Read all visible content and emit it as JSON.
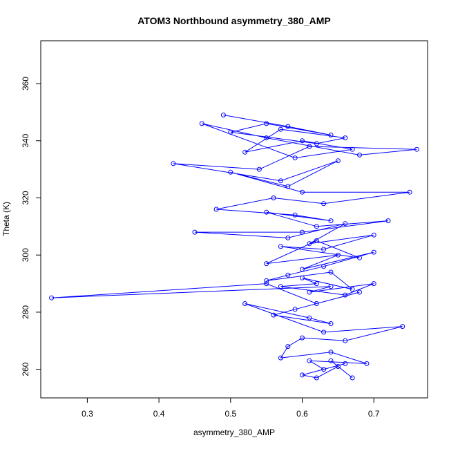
{
  "chart_data": {
    "type": "scatter",
    "title": "ATOM3 Northbound asymmetry_380_AMP",
    "xlabel": "asymmetry_380_AMP",
    "ylabel": "Theta (K)",
    "xlim": [
      0.235,
      0.775
    ],
    "ylim": [
      250,
      375
    ],
    "xticks": [
      "0.3",
      "0.4",
      "0.5",
      "0.6",
      "0.7"
    ],
    "yticks": [
      "260",
      "280",
      "300",
      "320",
      "340",
      "360"
    ],
    "grid": false,
    "colors": {
      "series": "#0000ff",
      "axis": "#000000"
    },
    "marker": "open-circle",
    "connect_points": true,
    "series": [
      {
        "x": [
          0.49,
          0.58,
          0.64,
          0.55,
          0.5,
          0.62,
          0.66,
          0.57,
          0.52,
          0.6,
          0.67,
          0.59,
          0.46,
          0.55,
          0.68,
          0.76,
          0.61,
          0.54,
          0.42,
          0.57,
          0.65,
          0.58,
          0.5,
          0.6,
          0.75,
          0.63,
          0.56,
          0.48,
          0.59,
          0.64,
          0.55,
          0.62,
          0.72,
          0.6,
          0.45,
          0.58,
          0.66,
          0.61,
          0.7,
          0.63,
          0.57,
          0.68,
          0.62,
          0.55,
          0.65,
          0.6,
          0.7,
          0.63,
          0.58,
          0.55,
          0.64,
          0.67,
          0.6,
          0.62,
          0.57,
          0.66,
          0.7,
          0.61,
          0.64,
          0.25,
          0.55,
          0.62,
          0.68,
          0.59,
          0.56,
          0.64,
          0.61,
          0.52,
          0.63,
          0.74,
          0.66,
          0.6,
          0.58,
          0.57,
          0.64,
          0.69,
          0.61,
          0.63,
          0.66,
          0.6,
          0.62,
          0.65,
          0.67,
          0.64
        ],
        "y": [
          349,
          345,
          342,
          346,
          343,
          339,
          341,
          344,
          336,
          340,
          337,
          334,
          346,
          341,
          335,
          337,
          338,
          330,
          332,
          326,
          333,
          324,
          329,
          322,
          322,
          318,
          320,
          316,
          314,
          312,
          315,
          310,
          312,
          308,
          308,
          306,
          311,
          304,
          307,
          302,
          303,
          299,
          305,
          297,
          300,
          295,
          301,
          296,
          293,
          291,
          294,
          288,
          292,
          290,
          289,
          286,
          290,
          287,
          289,
          285,
          290,
          283,
          287,
          281,
          279,
          276,
          278,
          283,
          273,
          275,
          270,
          271,
          268,
          264,
          266,
          262,
          263,
          260,
          262,
          258,
          257,
          261,
          257,
          263
        ]
      }
    ]
  }
}
